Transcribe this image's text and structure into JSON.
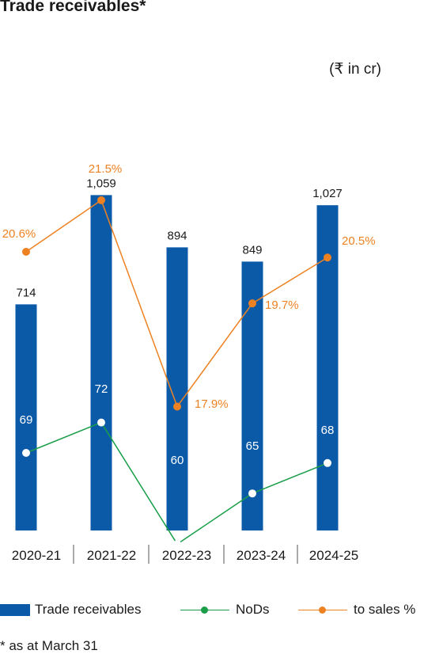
{
  "title": "Trade receivables*",
  "unit": "(₹ in cr)",
  "footnote": "* as at March 31",
  "colors": {
    "bar": "#0b5aa8",
    "nods": "#1a9e4a",
    "sales_pct": "#ee8222"
  },
  "legend": [
    {
      "label": "Trade receivables",
      "kind": "bar"
    },
    {
      "label": "NoDs",
      "kind": "line-green"
    },
    {
      "label": "to sales %",
      "kind": "line-orange"
    }
  ],
  "chart_data": {
    "type": "bar",
    "categories": [
      "2020-21",
      "2021-22",
      "2022-23",
      "2023-24",
      "2024-25"
    ],
    "series": [
      {
        "name": "Trade receivables",
        "type": "bar",
        "values": [
          714,
          1059,
          894,
          849,
          1027
        ],
        "labels": [
          "714",
          "1,059",
          "894",
          "849",
          "1,027"
        ]
      },
      {
        "name": "NoDs",
        "type": "line",
        "values": [
          69,
          72,
          60,
          65,
          68
        ]
      },
      {
        "name": "to sales %",
        "type": "line",
        "values": [
          20.6,
          21.5,
          17.9,
          19.7,
          20.5
        ],
        "labels": [
          "20.6%",
          "21.5%",
          "17.9%",
          "19.7%",
          "20.5%"
        ]
      }
    ],
    "grid": false,
    "legend_position": "bottom"
  }
}
